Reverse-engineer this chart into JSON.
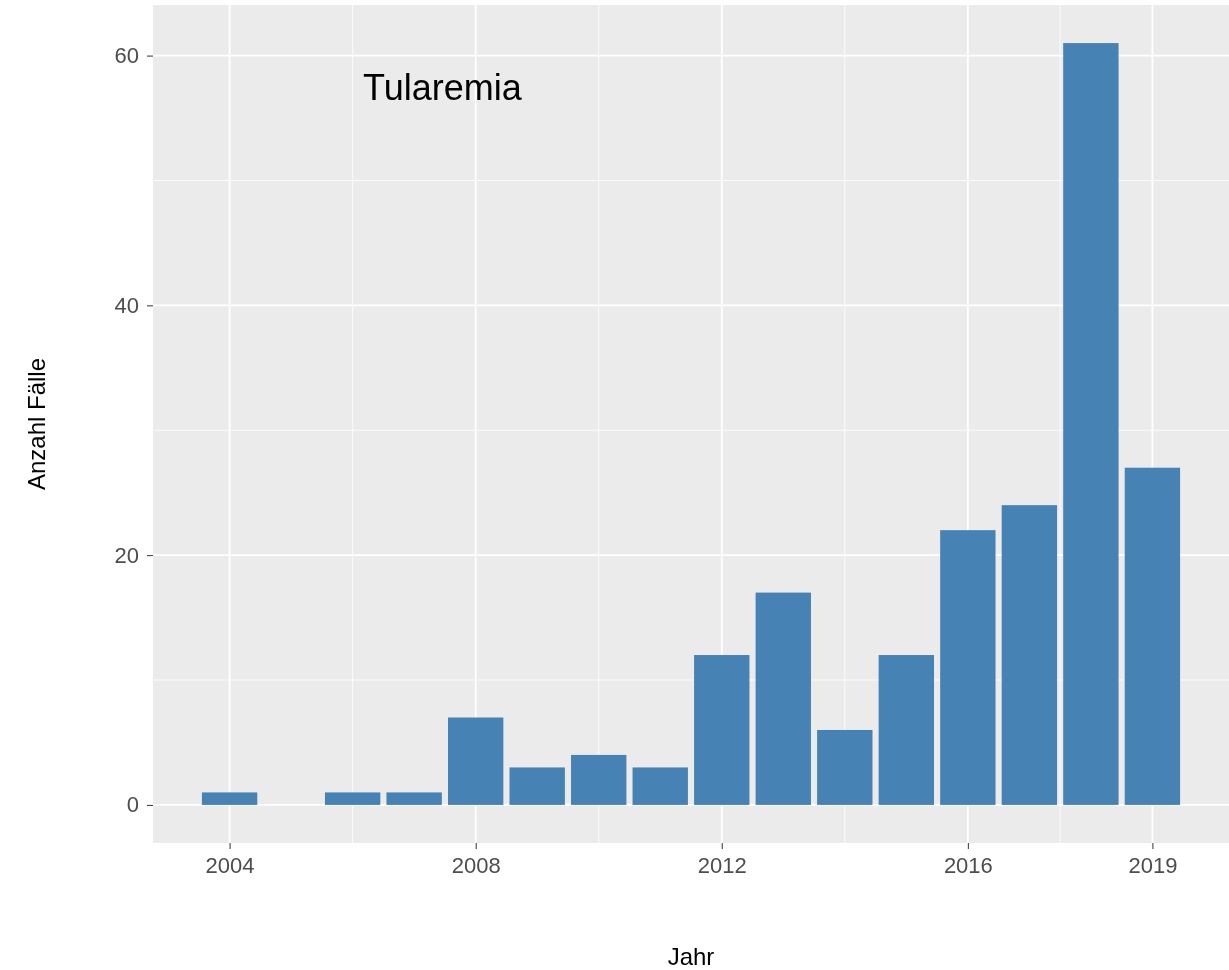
{
  "chart_data": {
    "type": "bar",
    "xlabel": "Jahr",
    "ylabel": "Anzahl Fälle",
    "annotations": [
      "Tularemia"
    ],
    "x": [
      2004,
      2005,
      2006,
      2007,
      2008,
      2009,
      2010,
      2011,
      2012,
      2013,
      2014,
      2015,
      2016,
      2017,
      2018,
      2019
    ],
    "values": [
      1,
      0,
      1,
      1,
      7,
      3,
      4,
      3,
      12,
      17,
      6,
      12,
      22,
      24,
      61,
      27
    ],
    "color": "#4682b4",
    "xlim": [
      2002.755,
      2020.245
    ],
    "xticks": [
      2004,
      2008,
      2012,
      2016,
      2019
    ],
    "ylim": [
      -3.05,
      64.05
    ],
    "yticks": [
      0,
      20,
      40,
      60
    ],
    "grid": true
  }
}
